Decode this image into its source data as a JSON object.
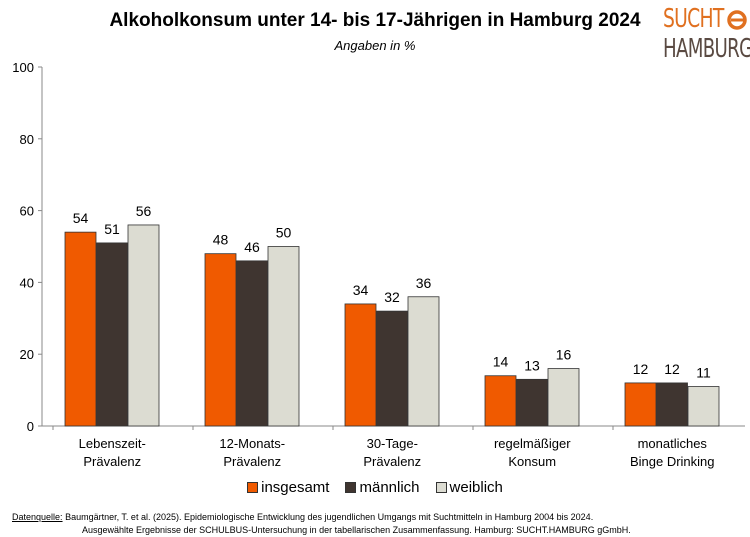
{
  "logo": {
    "line1": "SUCHT",
    "line2": "HAMBURG"
  },
  "source": {
    "label": "Datenquelle:",
    "line1": "Baumgärtner, T. et al. (2025). Epidemiologische Entwicklung des jugendlichen Umgangs mit Suchtmitteln in Hamburg 2004 bis 2024.",
    "line2": "Ausgewählte Ergebnisse der SCHULBUS-Untersuchung in der tabellarischen Zusammenfassung. Hamburg: SUCHT.HAMBURG gGmbH."
  },
  "chart_data": {
    "type": "bar",
    "title": "Alkoholkonsum unter 14- bis 17-Jährigen in Hamburg 2024",
    "subtitle": "Angaben in %",
    "categories": [
      [
        "Lebenszeit-",
        "Prävalenz"
      ],
      [
        "12-Monats-",
        "Prävalenz"
      ],
      [
        "30-Tage-",
        "Prävalenz"
      ],
      [
        "regelmäßiger",
        "Konsum"
      ],
      [
        "monatliches",
        "Binge Drinking"
      ]
    ],
    "series": [
      {
        "name": "insgesamt",
        "color": "#f05a00",
        "values": [
          54,
          48,
          34,
          14,
          12
        ]
      },
      {
        "name": "männlich",
        "color": "#3f3530",
        "values": [
          51,
          46,
          32,
          13,
          12
        ]
      },
      {
        "name": "weiblich",
        "color": "#dcdcd2",
        "values": [
          56,
          50,
          36,
          16,
          11
        ]
      }
    ],
    "ylim": [
      0,
      100
    ],
    "yticks": [
      0,
      20,
      40,
      60,
      80,
      100
    ],
    "grid": false,
    "legend": "bottom"
  }
}
